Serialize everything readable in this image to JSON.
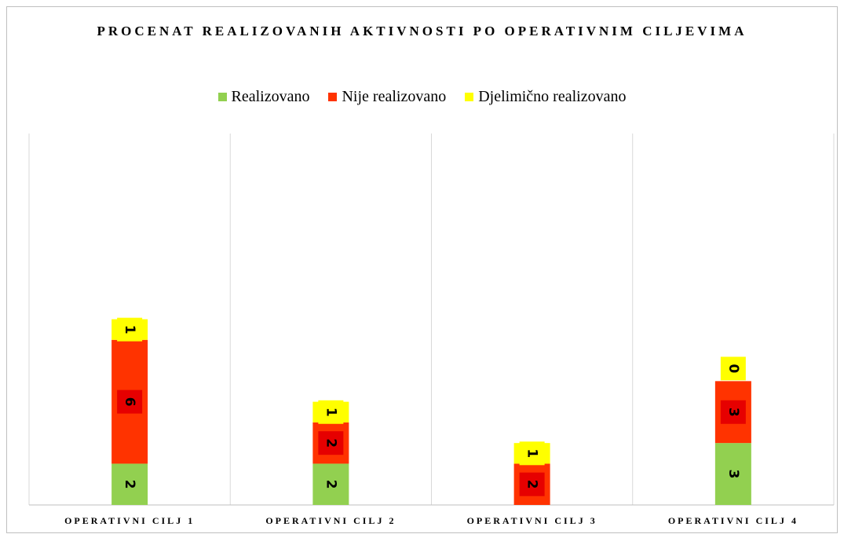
{
  "chart_data": {
    "type": "stacked_bar",
    "title": "PROCENAT REALIZOVANIH AKTIVNOSTI PO OPERATIVNIM CILJEVIMA",
    "categories": [
      "OPERATIVNI CILJ  1",
      "OPERATIVNI CILJ 2",
      "OPERATIVNI CILJ 3",
      "OPERATIVNI CILJ 4"
    ],
    "series": [
      {
        "name": "Realizovano",
        "color": "#92d050",
        "values": [
          2,
          2,
          null,
          3
        ]
      },
      {
        "name": "Nije realizovano",
        "color": "#ff3300",
        "values": [
          6,
          2,
          2,
          3
        ]
      },
      {
        "name": "Djelimično realizovano",
        "color": "#ffff00",
        "values": [
          1,
          1,
          1,
          0
        ]
      }
    ],
    "ylim": [
      0,
      18
    ],
    "legend": "top"
  }
}
